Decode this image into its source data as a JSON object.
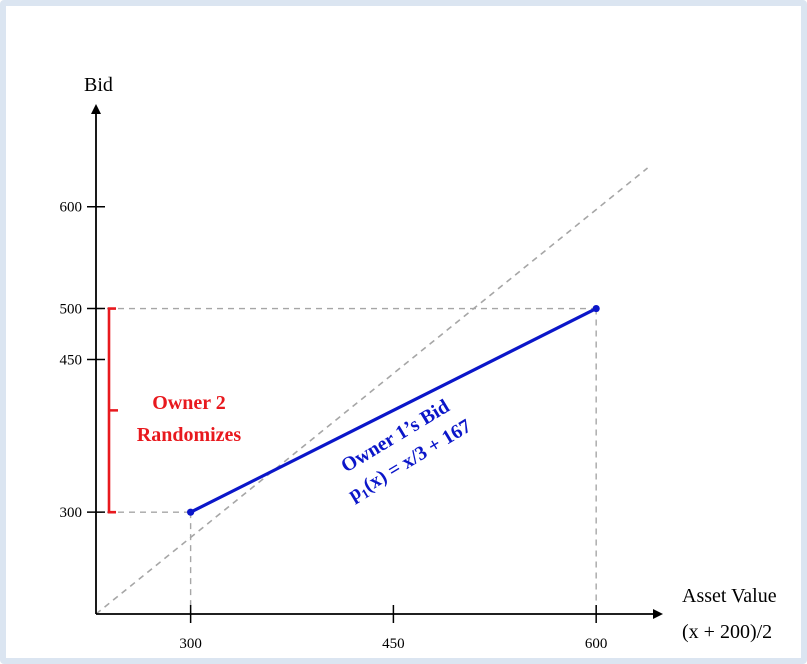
{
  "chart_data": {
    "type": "line",
    "xlabel_line1": "Asset Value",
    "xlabel_line2": "(x + 200)/2",
    "ylabel": "Bid",
    "x_ticks": [
      300,
      450,
      600
    ],
    "y_ticks": [
      300,
      450,
      500,
      600
    ],
    "xlim": [
      230,
      645
    ],
    "ylim": [
      200,
      695
    ],
    "series": [
      {
        "name": "Owner 1’s Bid",
        "equation": "p1(x) = x/3 + 167",
        "color": "#0b16c9",
        "x": [
          300,
          600
        ],
        "y": [
          300,
          500
        ]
      }
    ],
    "reference_line": {
      "style": "dashed",
      "color": "#a6a6a6",
      "relation": "y = x"
    },
    "bracket": {
      "label_line1": "Owner 2",
      "label_line2": "Randomizes",
      "color": "#e8191e",
      "y_range": [
        300,
        500
      ]
    }
  }
}
